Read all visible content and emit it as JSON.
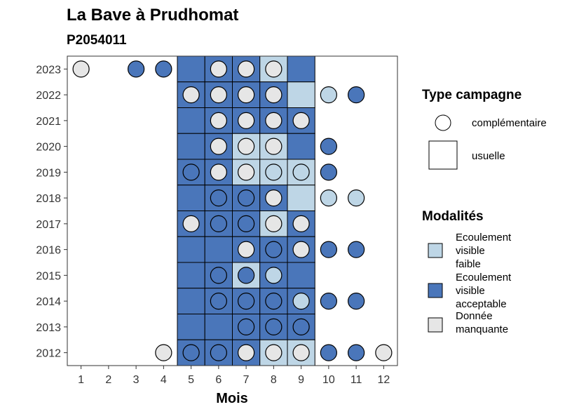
{
  "chart_data": {
    "type": "heatmap",
    "title": "La Bave à Prudhomat",
    "subtitle": "P2054011",
    "xlabel": "Mois",
    "ylabel": "",
    "x_ticks": [
      "1",
      "2",
      "3",
      "4",
      "5",
      "6",
      "7",
      "8",
      "9",
      "10",
      "11",
      "12"
    ],
    "y_ticks": [
      "2012",
      "2013",
      "2014",
      "2015",
      "2016",
      "2017",
      "2018",
      "2019",
      "2020",
      "2021",
      "2022",
      "2023"
    ],
    "grid": false,
    "legend_position": "right",
    "colors": {
      "faible": "#BED6E6",
      "acceptable": "#4A76BA",
      "manquante": "#E6E6E6"
    },
    "legends": {
      "type": {
        "title": "Type campagne",
        "entries": [
          {
            "label": "complémentaire",
            "shape": "circle"
          },
          {
            "label": "usuelle",
            "shape": "square"
          }
        ]
      },
      "modalites": {
        "title": "Modalités",
        "entries": [
          {
            "key": "faible",
            "lines": [
              "Ecoulement",
              "visible",
              "faible"
            ]
          },
          {
            "key": "acceptable",
            "lines": [
              "Ecoulement",
              "visible",
              "acceptable"
            ]
          },
          {
            "key": "manquante",
            "lines": [
              "Donnée",
              "manquante"
            ]
          }
        ]
      }
    },
    "usuelle": [
      {
        "year": 2023,
        "months": {
          "5": "acceptable",
          "6": "acceptable",
          "7": "acceptable",
          "8": "faible",
          "9": "acceptable"
        }
      },
      {
        "year": 2022,
        "months": {
          "5": "acceptable",
          "6": "acceptable",
          "7": "acceptable",
          "8": "acceptable",
          "9": "faible"
        }
      },
      {
        "year": 2021,
        "months": {
          "5": "acceptable",
          "6": "acceptable",
          "7": "acceptable",
          "8": "acceptable",
          "9": "acceptable"
        }
      },
      {
        "year": 2020,
        "months": {
          "5": "acceptable",
          "6": "acceptable",
          "7": "faible",
          "8": "faible",
          "9": "acceptable"
        }
      },
      {
        "year": 2019,
        "months": {
          "5": "acceptable",
          "6": "acceptable",
          "7": "faible",
          "8": "faible",
          "9": "faible"
        }
      },
      {
        "year": 2018,
        "months": {
          "5": "acceptable",
          "6": "acceptable",
          "7": "acceptable",
          "8": "acceptable",
          "9": "faible"
        }
      },
      {
        "year": 2017,
        "months": {
          "5": "acceptable",
          "6": "acceptable",
          "7": "acceptable",
          "8": "faible",
          "9": "acceptable"
        }
      },
      {
        "year": 2016,
        "months": {
          "5": "acceptable",
          "6": "acceptable",
          "7": "acceptable",
          "8": "acceptable",
          "9": "acceptable"
        }
      },
      {
        "year": 2015,
        "months": {
          "5": "acceptable",
          "6": "acceptable",
          "7": "faible",
          "8": "acceptable",
          "9": "acceptable"
        }
      },
      {
        "year": 2014,
        "months": {
          "5": "acceptable",
          "6": "acceptable",
          "7": "acceptable",
          "8": "acceptable",
          "9": "acceptable"
        }
      },
      {
        "year": 2013,
        "months": {
          "5": "acceptable",
          "6": "acceptable",
          "7": "acceptable",
          "8": "acceptable",
          "9": "acceptable"
        }
      },
      {
        "year": 2012,
        "months": {
          "5": "acceptable",
          "6": "acceptable",
          "7": "acceptable",
          "8": "faible",
          "9": "faible"
        }
      }
    ],
    "complementaire": [
      {
        "year": 2023,
        "months": {
          "1": "manquante",
          "3": "acceptable",
          "4": "acceptable",
          "6": "manquante",
          "7": "manquante",
          "8": "manquante"
        }
      },
      {
        "year": 2022,
        "months": {
          "5": "manquante",
          "6": "manquante",
          "7": "manquante",
          "8": "manquante",
          "10": "faible",
          "11": "acceptable"
        }
      },
      {
        "year": 2021,
        "months": {
          "6": "manquante",
          "7": "manquante",
          "8": "manquante",
          "9": "manquante"
        }
      },
      {
        "year": 2020,
        "months": {
          "6": "manquante",
          "7": "manquante",
          "8": "manquante",
          "10": "acceptable"
        }
      },
      {
        "year": 2019,
        "months": {
          "5": "acceptable",
          "6": "manquante",
          "7": "manquante",
          "8": "faible",
          "9": "faible",
          "10": "acceptable"
        }
      },
      {
        "year": 2018,
        "months": {
          "6": "acceptable",
          "7": "acceptable",
          "8": "manquante",
          "10": "faible",
          "11": "faible"
        }
      },
      {
        "year": 2017,
        "months": {
          "5": "manquante",
          "6": "acceptable",
          "7": "acceptable",
          "8": "manquante",
          "9": "manquante"
        }
      },
      {
        "year": 2016,
        "months": {
          "7": "manquante",
          "8": "acceptable",
          "9": "manquante",
          "10": "acceptable",
          "11": "acceptable"
        }
      },
      {
        "year": 2015,
        "months": {
          "6": "acceptable",
          "7": "acceptable",
          "8": "faible"
        }
      },
      {
        "year": 2014,
        "months": {
          "6": "acceptable",
          "7": "acceptable",
          "8": "acceptable",
          "9": "faible",
          "10": "acceptable",
          "11": "acceptable"
        }
      },
      {
        "year": 2013,
        "months": {
          "7": "acceptable",
          "8": "acceptable",
          "9": "acceptable"
        }
      },
      {
        "year": 2012,
        "months": {
          "4": "manquante",
          "5": "acceptable",
          "6": "acceptable",
          "7": "manquante",
          "8": "manquante",
          "9": "manquante",
          "10": "acceptable",
          "11": "acceptable",
          "12": "manquante"
        }
      }
    ]
  }
}
